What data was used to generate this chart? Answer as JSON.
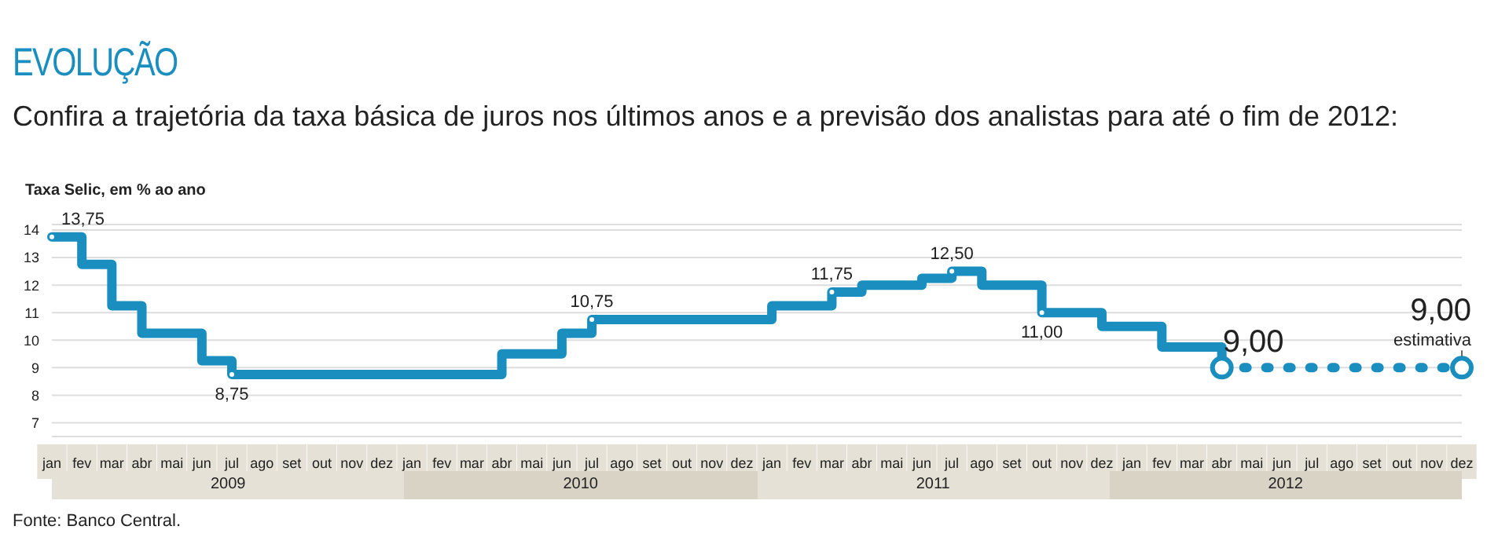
{
  "chart_data": {
    "type": "step",
    "title": "EVOLUÇÃO",
    "subtitle": "Confira a trajetória da taxa básica de juros nos últimos anos e a previsão dos analistas para até o fim de 2012:",
    "ylabel": "Taxa Selic, em % ao ano",
    "categories": [
      "jan",
      "fev",
      "mar",
      "abr",
      "mai",
      "jun",
      "jul",
      "ago",
      "set",
      "out",
      "nov",
      "dez",
      "jan",
      "fev",
      "mar",
      "abr",
      "mai",
      "jun",
      "jul",
      "ago",
      "set",
      "out",
      "nov",
      "dez",
      "jan",
      "fev",
      "mar",
      "abr",
      "mai",
      "jun",
      "jul",
      "ago",
      "set",
      "out",
      "nov",
      "dez",
      "jan",
      "fev",
      "mar",
      "abr",
      "mai",
      "jun",
      "jul",
      "ago",
      "set",
      "out",
      "nov",
      "dez"
    ],
    "series": [
      {
        "type": "step",
        "color": "#1b8ec0",
        "line_style": "solid",
        "values": [
          13.75,
          12.75,
          11.25,
          10.25,
          10.25,
          9.25,
          8.75,
          8.75,
          8.75,
          8.75,
          8.75,
          8.75,
          8.75,
          8.75,
          8.75,
          9.5,
          9.5,
          10.25,
          10.75,
          10.75,
          10.75,
          10.75,
          10.75,
          10.75,
          11.25,
          11.25,
          11.75,
          12,
          12,
          12.25,
          12.5,
          12,
          12,
          11,
          11,
          10.5,
          10.5,
          9.75,
          9.75,
          9,
          null,
          null,
          null,
          null,
          null,
          null,
          null,
          null
        ],
        "value_labels": [
          "13,75",
          null,
          null,
          null,
          null,
          null,
          "8,75",
          null,
          null,
          null,
          null,
          null,
          null,
          null,
          null,
          null,
          null,
          null,
          "10,75",
          null,
          null,
          null,
          null,
          null,
          null,
          null,
          "11,75",
          null,
          null,
          null,
          "12,50",
          null,
          null,
          "11,00",
          null,
          null,
          null,
          null,
          null,
          "9,00",
          null,
          null,
          null,
          null,
          null,
          null,
          null,
          null
        ]
      },
      {
        "type": "line",
        "color": "#1b8ec0",
        "line_style": "dashed",
        "values": [
          null,
          null,
          null,
          null,
          null,
          null,
          null,
          null,
          null,
          null,
          null,
          null,
          null,
          null,
          null,
          null,
          null,
          null,
          null,
          null,
          null,
          null,
          null,
          null,
          null,
          null,
          null,
          null,
          null,
          null,
          null,
          null,
          null,
          null,
          null,
          null,
          null,
          null,
          null,
          9,
          9,
          9,
          9,
          9,
          9,
          9,
          9,
          9
        ],
        "value_labels": [
          null,
          null,
          null,
          null,
          null,
          null,
          null,
          null,
          null,
          null,
          null,
          null,
          null,
          null,
          null,
          null,
          null,
          null,
          null,
          null,
          null,
          null,
          null,
          null,
          null,
          null,
          null,
          null,
          null,
          null,
          null,
          null,
          null,
          null,
          null,
          null,
          null,
          null,
          null,
          null,
          null,
          null,
          null,
          null,
          null,
          null,
          null,
          "9,00"
        ]
      }
    ],
    "ylim": [
      6.5,
      14.2
    ],
    "yticks": [
      7,
      8,
      9,
      10,
      11,
      12,
      13,
      14
    ],
    "grid": "y",
    "annotations": [
      "2009",
      "2010",
      "2011",
      "2012",
      "estimativa",
      "Fonte: Banco Central."
    ]
  }
}
